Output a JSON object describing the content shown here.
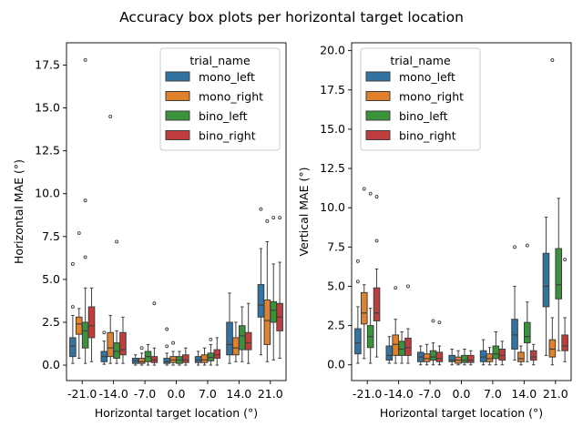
{
  "figure_title": "Accuracy box plots per horizontal target location",
  "colors": {
    "mono_left": "#3274a1",
    "mono_right": "#e1812c",
    "bino_left": "#3a923a",
    "bino_right": "#c03d3e",
    "edge": "#3f3f3f"
  },
  "chart_data": [
    {
      "type": "box",
      "xlabel": "Horizontal target location (°)",
      "ylabel": "Horizontal MAE (°)",
      "categories": [
        "-21.0",
        "-14.0",
        "-7.0",
        "0.0",
        "7.0",
        "14.0",
        "21.0"
      ],
      "ylim": [
        -0.9,
        18.8
      ],
      "yticks": [
        0.0,
        2.5,
        5.0,
        7.5,
        10.0,
        12.5,
        15.0,
        17.5
      ],
      "ytick_labels": [
        "0.0",
        "2.5",
        "5.0",
        "7.5",
        "10.0",
        "12.5",
        "15.0",
        "17.5"
      ],
      "legend": {
        "title": "trial_name",
        "position": "upper-right",
        "entries": [
          "mono_left",
          "mono_right",
          "bino_left",
          "bino_right"
        ]
      },
      "series": [
        {
          "name": "mono_left",
          "color_key": "mono_left",
          "boxes": [
            {
              "q1": 0.5,
              "median": 1.1,
              "q3": 1.6,
              "whislo": 0.1,
              "whishi": 2.9,
              "fliers": [
                3.4,
                5.9
              ]
            },
            {
              "q1": 0.2,
              "median": 0.5,
              "q3": 0.8,
              "whislo": 0.05,
              "whishi": 1.4,
              "fliers": [
                1.9
              ]
            },
            {
              "q1": 0.1,
              "median": 0.25,
              "q3": 0.4,
              "whislo": 0.0,
              "whishi": 0.6,
              "fliers": []
            },
            {
              "q1": 0.1,
              "median": 0.2,
              "q3": 0.4,
              "whislo": 0.0,
              "whishi": 0.7,
              "fliers": [
                1.1,
                2.1
              ]
            },
            {
              "q1": 0.15,
              "median": 0.3,
              "q3": 0.5,
              "whislo": 0.0,
              "whishi": 0.8,
              "fliers": []
            },
            {
              "q1": 0.6,
              "median": 1.2,
              "q3": 2.5,
              "whislo": 0.1,
              "whishi": 4.2,
              "fliers": []
            },
            {
              "q1": 2.8,
              "median": 3.5,
              "q3": 4.7,
              "whislo": 0.6,
              "whishi": 6.8,
              "fliers": [
                9.1
              ]
            }
          ]
        },
        {
          "name": "mono_right",
          "color_key": "mono_right",
          "boxes": [
            {
              "q1": 1.8,
              "median": 2.4,
              "q3": 2.8,
              "whislo": 0.4,
              "whishi": 3.3,
              "fliers": [
                7.7
              ]
            },
            {
              "q1": 0.5,
              "median": 1.0,
              "q3": 1.9,
              "whislo": 0.1,
              "whishi": 2.9,
              "fliers": [
                14.5
              ]
            },
            {
              "q1": 0.1,
              "median": 0.2,
              "q3": 0.4,
              "whislo": 0.0,
              "whishi": 0.7,
              "fliers": [
                1.0
              ]
            },
            {
              "q1": 0.15,
              "median": 0.3,
              "q3": 0.5,
              "whislo": 0.0,
              "whishi": 0.8,
              "fliers": [
                1.3
              ]
            },
            {
              "q1": 0.15,
              "median": 0.3,
              "q3": 0.6,
              "whislo": 0.0,
              "whishi": 1.0,
              "fliers": []
            },
            {
              "q1": 0.6,
              "median": 1.0,
              "q3": 1.6,
              "whislo": 0.2,
              "whishi": 2.5,
              "fliers": []
            },
            {
              "q1": 1.2,
              "median": 2.6,
              "q3": 3.8,
              "whislo": 0.2,
              "whishi": 7.2,
              "fliers": [
                8.4
              ]
            }
          ]
        },
        {
          "name": "bino_left",
          "color_key": "bino_left",
          "boxes": [
            {
              "q1": 1.0,
              "median": 2.0,
              "q3": 2.5,
              "whislo": 0.1,
              "whishi": 4.5,
              "fliers": [
                6.3,
                9.6,
                17.8
              ]
            },
            {
              "q1": 0.4,
              "median": 0.8,
              "q3": 1.3,
              "whislo": 0.1,
              "whishi": 2.0,
              "fliers": [
                7.2
              ]
            },
            {
              "q1": 0.2,
              "median": 0.5,
              "q3": 0.8,
              "whislo": 0.0,
              "whishi": 1.2,
              "fliers": []
            },
            {
              "q1": 0.1,
              "median": 0.3,
              "q3": 0.5,
              "whislo": 0.0,
              "whishi": 0.8,
              "fliers": []
            },
            {
              "q1": 0.25,
              "median": 0.45,
              "q3": 0.7,
              "whislo": 0.0,
              "whishi": 1.2,
              "fliers": [
                1.5
              ]
            },
            {
              "q1": 0.9,
              "median": 1.7,
              "q3": 2.3,
              "whislo": 0.2,
              "whishi": 3.4,
              "fliers": []
            },
            {
              "q1": 2.5,
              "median": 3.2,
              "q3": 3.7,
              "whislo": 0.3,
              "whishi": 5.9,
              "fliers": [
                8.6
              ]
            }
          ]
        },
        {
          "name": "bino_right",
          "color_key": "bino_right",
          "boxes": [
            {
              "q1": 1.6,
              "median": 2.3,
              "q3": 3.4,
              "whislo": 0.2,
              "whishi": 4.5,
              "fliers": []
            },
            {
              "q1": 0.6,
              "median": 0.9,
              "q3": 1.9,
              "whislo": 0.1,
              "whishi": 2.8,
              "fliers": []
            },
            {
              "q1": 0.15,
              "median": 0.3,
              "q3": 0.5,
              "whislo": 0.0,
              "whishi": 1.0,
              "fliers": [
                3.6
              ]
            },
            {
              "q1": 0.15,
              "median": 0.3,
              "q3": 0.6,
              "whislo": 0.0,
              "whishi": 1.0,
              "fliers": []
            },
            {
              "q1": 0.4,
              "median": 0.6,
              "q3": 0.9,
              "whislo": 0.0,
              "whishi": 1.6,
              "fliers": []
            },
            {
              "q1": 0.9,
              "median": 1.3,
              "q3": 1.9,
              "whislo": 0.1,
              "whishi": 3.6,
              "fliers": []
            },
            {
              "q1": 2.0,
              "median": 2.8,
              "q3": 3.6,
              "whislo": 0.4,
              "whishi": 6.0,
              "fliers": [
                8.6
              ]
            }
          ]
        }
      ]
    },
    {
      "type": "box",
      "xlabel": "Horizontal target location (°)",
      "ylabel": "Vertical MAE (°)",
      "categories": [
        "-21.0",
        "-14.0",
        "-7.0",
        "0.0",
        "7.0",
        "14.0",
        "21.0"
      ],
      "ylim": [
        -1.0,
        20.5
      ],
      "yticks": [
        0.0,
        2.5,
        5.0,
        7.5,
        10.0,
        12.5,
        15.0,
        17.5,
        20.0
      ],
      "ytick_labels": [
        "0.0",
        "2.5",
        "5.0",
        "7.5",
        "10.0",
        "12.5",
        "15.0",
        "17.5",
        "20.0"
      ],
      "legend": {
        "title": "trial_name",
        "position": "upper-left",
        "entries": [
          "mono_left",
          "mono_right",
          "bino_left",
          "bino_right"
        ]
      },
      "series": [
        {
          "name": "mono_left",
          "color_key": "mono_left",
          "boxes": [
            {
              "q1": 0.7,
              "median": 1.4,
              "q3": 2.3,
              "whislo": 0.1,
              "whishi": 3.7,
              "fliers": [
                5.3,
                6.6
              ]
            },
            {
              "q1": 0.3,
              "median": 0.6,
              "q3": 1.2,
              "whislo": 0.1,
              "whishi": 1.8,
              "fliers": []
            },
            {
              "q1": 0.2,
              "median": 0.5,
              "q3": 0.8,
              "whislo": 0.0,
              "whishi": 1.2,
              "fliers": []
            },
            {
              "q1": 0.2,
              "median": 0.3,
              "q3": 0.6,
              "whislo": 0.0,
              "whishi": 1.0,
              "fliers": []
            },
            {
              "q1": 0.2,
              "median": 0.5,
              "q3": 0.9,
              "whislo": 0.0,
              "whishi": 1.6,
              "fliers": []
            },
            {
              "q1": 1.0,
              "median": 1.9,
              "q3": 2.9,
              "whislo": 0.3,
              "whishi": 5.0,
              "fliers": [
                7.5
              ]
            },
            {
              "q1": 3.7,
              "median": 5.0,
              "q3": 7.1,
              "whislo": 0.6,
              "whishi": 9.4,
              "fliers": []
            }
          ]
        },
        {
          "name": "mono_right",
          "color_key": "mono_right",
          "boxes": [
            {
              "q1": 2.6,
              "median": 3.3,
              "q3": 4.6,
              "whislo": 0.4,
              "whishi": 5.1,
              "fliers": [
                11.2
              ]
            },
            {
              "q1": 0.6,
              "median": 1.3,
              "q3": 1.9,
              "whislo": 0.1,
              "whishi": 2.9,
              "fliers": [
                4.9
              ]
            },
            {
              "q1": 0.2,
              "median": 0.4,
              "q3": 0.7,
              "whislo": 0.0,
              "whishi": 1.3,
              "fliers": []
            },
            {
              "q1": 0.1,
              "median": 0.3,
              "q3": 0.5,
              "whislo": 0.0,
              "whishi": 0.9,
              "fliers": []
            },
            {
              "q1": 0.2,
              "median": 0.4,
              "q3": 0.7,
              "whislo": 0.0,
              "whishi": 1.1,
              "fliers": []
            },
            {
              "q1": 0.2,
              "median": 0.4,
              "q3": 0.8,
              "whislo": 0.0,
              "whishi": 1.2,
              "fliers": []
            },
            {
              "q1": 0.5,
              "median": 1.0,
              "q3": 1.6,
              "whislo": 0.0,
              "whishi": 3.0,
              "fliers": [
                19.4
              ]
            }
          ]
        },
        {
          "name": "bino_left",
          "color_key": "bino_left",
          "boxes": [
            {
              "q1": 1.1,
              "median": 1.8,
              "q3": 2.5,
              "whislo": 0.1,
              "whishi": 3.6,
              "fliers": [
                10.9
              ]
            },
            {
              "q1": 0.6,
              "median": 1.0,
              "q3": 1.5,
              "whislo": 0.1,
              "whishi": 2.1,
              "fliers": []
            },
            {
              "q1": 0.3,
              "median": 0.5,
              "q3": 0.9,
              "whislo": 0.0,
              "whishi": 1.4,
              "fliers": [
                2.8
              ]
            },
            {
              "q1": 0.15,
              "median": 0.3,
              "q3": 0.6,
              "whislo": 0.0,
              "whishi": 1.0,
              "fliers": []
            },
            {
              "q1": 0.4,
              "median": 0.7,
              "q3": 1.2,
              "whislo": 0.0,
              "whishi": 2.1,
              "fliers": []
            },
            {
              "q1": 1.4,
              "median": 1.8,
              "q3": 2.7,
              "whislo": 0.2,
              "whishi": 4.0,
              "fliers": [
                7.6
              ]
            },
            {
              "q1": 4.2,
              "median": 5.1,
              "q3": 7.4,
              "whislo": 0.9,
              "whishi": 10.6,
              "fliers": []
            }
          ]
        },
        {
          "name": "bino_right",
          "color_key": "bino_right",
          "boxes": [
            {
              "q1": 2.8,
              "median": 3.3,
              "q3": 4.9,
              "whislo": 0.5,
              "whishi": 6.1,
              "fliers": [
                7.9,
                10.7
              ]
            },
            {
              "q1": 0.6,
              "median": 1.1,
              "q3": 1.7,
              "whislo": 0.1,
              "whishi": 2.3,
              "fliers": [
                5.0
              ]
            },
            {
              "q1": 0.2,
              "median": 0.4,
              "q3": 0.8,
              "whislo": 0.0,
              "whishi": 1.2,
              "fliers": [
                2.7
              ]
            },
            {
              "q1": 0.15,
              "median": 0.3,
              "q3": 0.6,
              "whislo": 0.0,
              "whishi": 0.9,
              "fliers": []
            },
            {
              "q1": 0.3,
              "median": 0.6,
              "q3": 1.0,
              "whislo": 0.0,
              "whishi": 1.5,
              "fliers": []
            },
            {
              "q1": 0.3,
              "median": 0.5,
              "q3": 0.9,
              "whislo": 0.0,
              "whishi": 1.3,
              "fliers": []
            },
            {
              "q1": 0.9,
              "median": 1.2,
              "q3": 1.9,
              "whislo": 0.2,
              "whishi": 3.0,
              "fliers": [
                6.7
              ]
            }
          ]
        }
      ]
    }
  ]
}
